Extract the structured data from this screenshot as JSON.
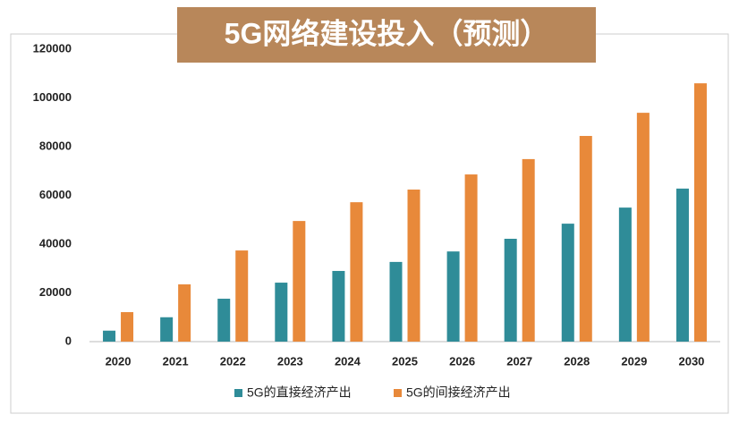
{
  "chart_data": {
    "type": "bar",
    "title": "5G网络建设投入（预测）",
    "categories": [
      "2020",
      "2021",
      "2022",
      "2023",
      "2024",
      "2025",
      "2026",
      "2027",
      "2028",
      "2029",
      "2030"
    ],
    "series": [
      {
        "name": "5G的直接经济产出",
        "color": "#2f8c98",
        "values": [
          4500,
          10000,
          17600,
          24200,
          29000,
          32700,
          37000,
          42200,
          48400,
          55000,
          62800
        ]
      },
      {
        "name": "5G的间接经济产出",
        "color": "#e8893a",
        "values": [
          12100,
          23500,
          37400,
          49500,
          57200,
          62400,
          68600,
          74900,
          84400,
          93900,
          106000
        ]
      }
    ],
    "ylim": [
      0,
      120000
    ],
    "yticks": [
      0,
      20000,
      40000,
      60000,
      80000,
      100000,
      120000
    ],
    "grid": false
  }
}
